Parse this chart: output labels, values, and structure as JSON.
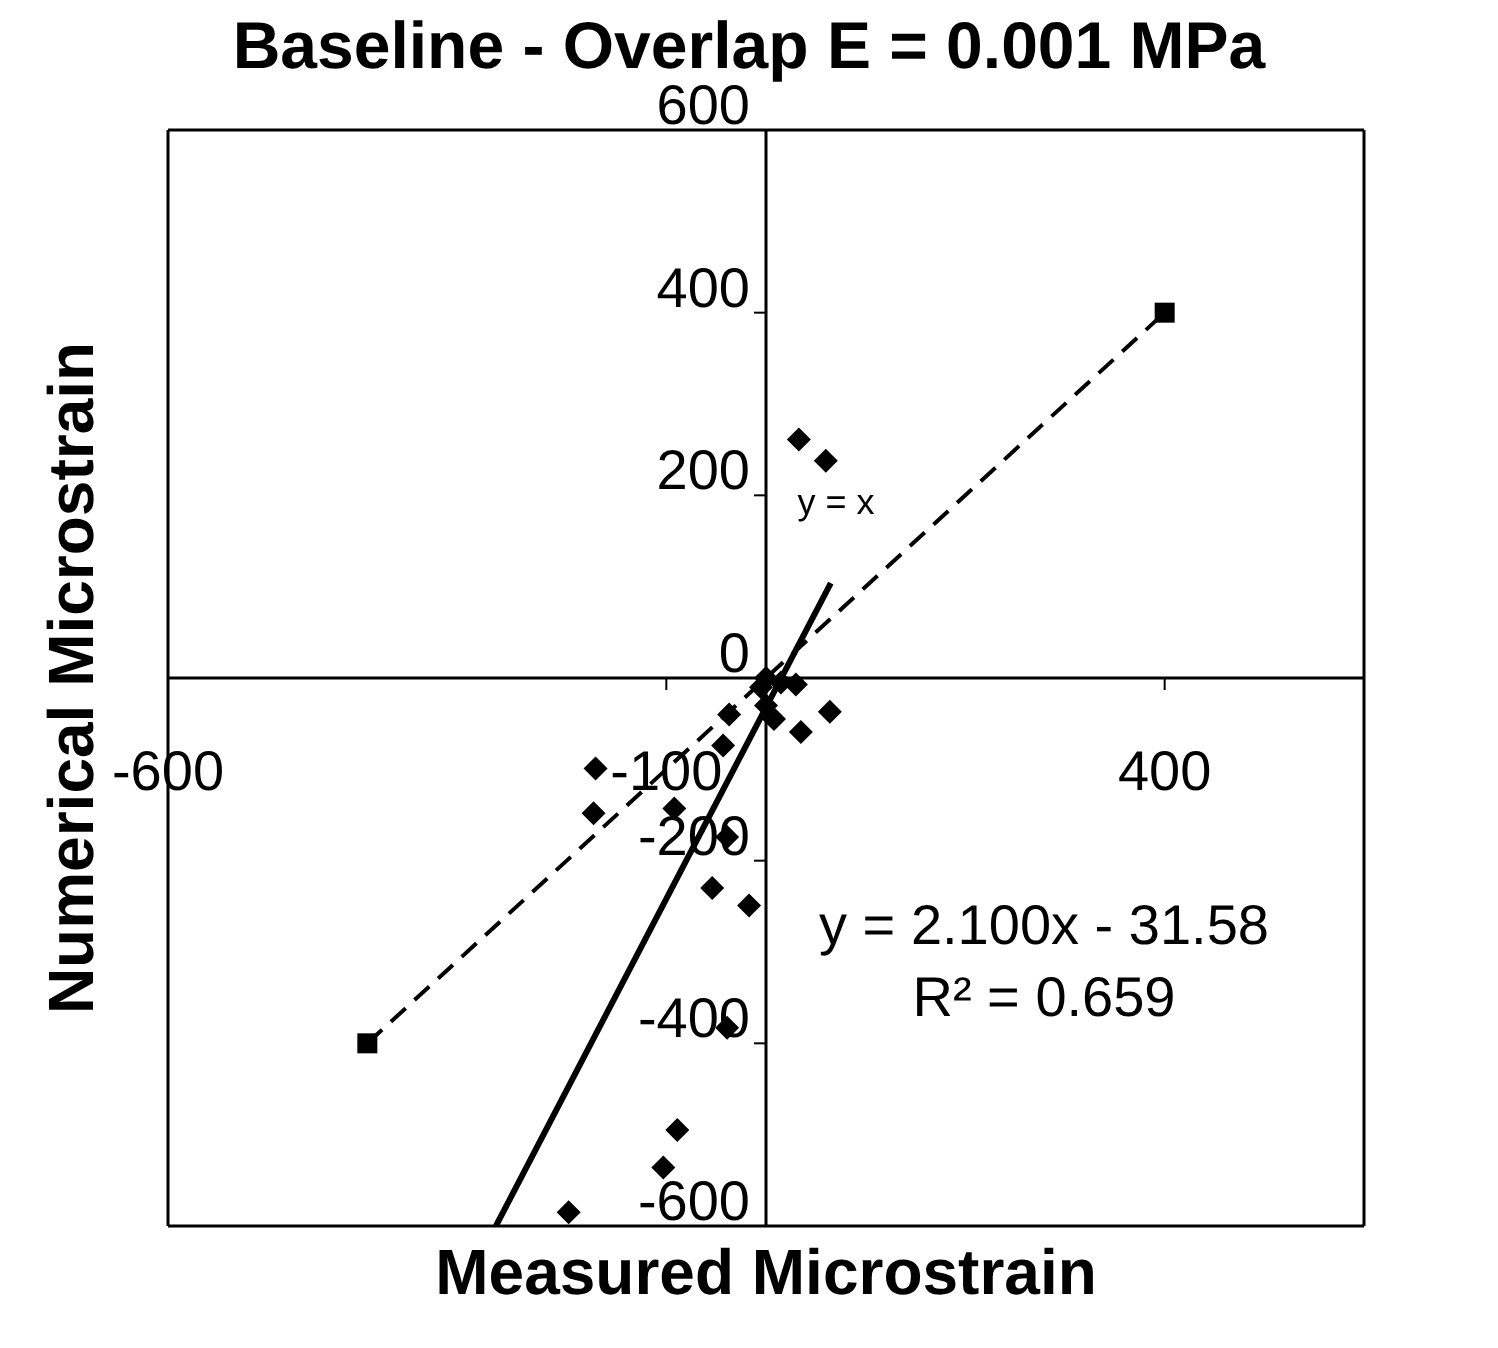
{
  "chart_data": {
    "type": "scatter",
    "title": "Baseline - Overlap E = 0.001 MPa",
    "xlabel": "Measured Microstrain",
    "ylabel": "Numerical Microstrain",
    "xlim": [
      -600,
      600
    ],
    "xticks": [
      -600,
      -100,
      400
    ],
    "ylim": [
      -600,
      600
    ],
    "yticks": [
      -600,
      -400,
      -200,
      0,
      200,
      400,
      600
    ],
    "grid": false,
    "annotations": [
      "y = 2.100x - 31.58",
      "R² = 0.659"
    ],
    "series": [
      {
        "marker": "diamond",
        "color": "#000000",
        "x": [
          33,
          60,
          30,
          64,
          35,
          -37,
          -43,
          -171,
          -173,
          -92,
          -39,
          -54,
          -17,
          -39,
          -89,
          -103,
          -198,
          0,
          -5,
          15,
          0,
          8
        ],
        "values": [
          261,
          238,
          -7,
          -37,
          -59,
          -40,
          -74,
          -99,
          -148,
          -143,
          -174,
          -230,
          -249,
          -383,
          -495,
          -536,
          -585,
          0,
          -10,
          -5,
          -30,
          -45
        ]
      },
      {
        "type": "line",
        "name": "y = x",
        "marker": "square",
        "line_style": "dashed",
        "color": "#000000",
        "x": [
          -400,
          400
        ],
        "values": [
          -400,
          400
        ]
      },
      {
        "type": "line",
        "marker": "none",
        "line_style": "solid",
        "color": "#000000",
        "x": [
          -271,
          65
        ],
        "values": [
          -600,
          104
        ]
      }
    ]
  }
}
